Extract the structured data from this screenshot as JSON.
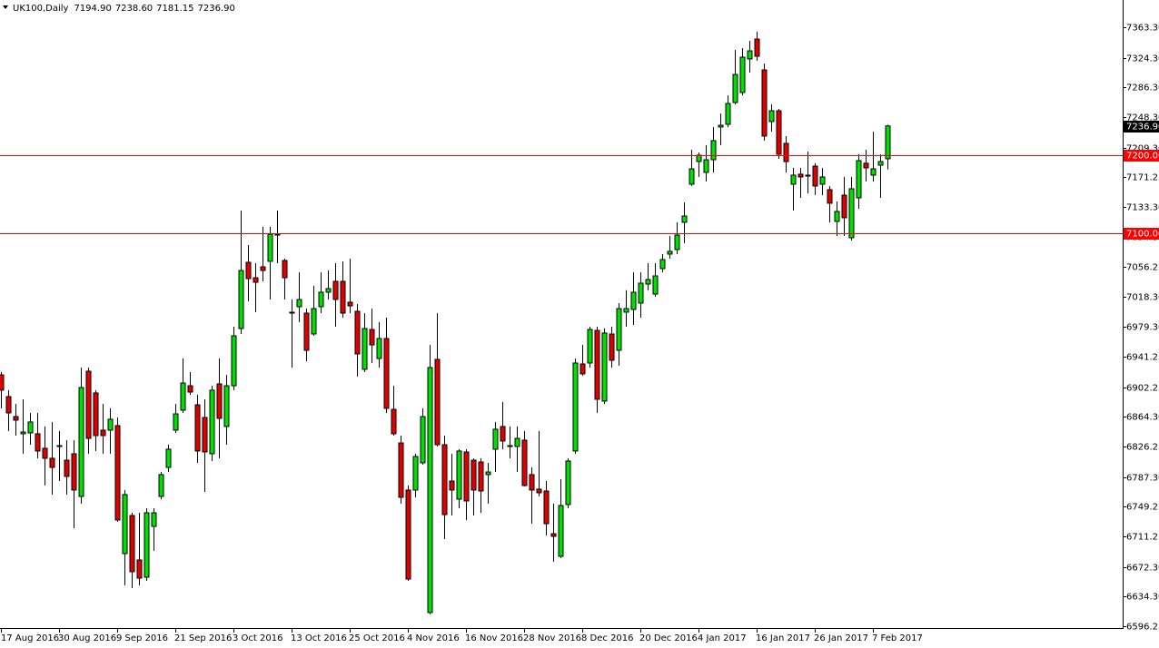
{
  "chart_data": {
    "type": "candlestick",
    "header": {
      "symbol": "UK100,Daily",
      "ohlc": [
        "7194.90",
        "7238.60",
        "7181.15",
        "7236.90"
      ]
    },
    "categories": [
      "17 Aug 2016",
      null,
      null,
      null,
      null,
      null,
      null,
      null,
      "30 Aug 2016",
      null,
      null,
      null,
      null,
      null,
      null,
      null,
      "9 Sep 2016",
      null,
      null,
      null,
      null,
      null,
      null,
      null,
      "21 Sep 2016",
      null,
      null,
      null,
      null,
      null,
      null,
      null,
      "3 Oct 2016",
      null,
      null,
      null,
      null,
      null,
      null,
      null,
      "13 Oct 2016",
      null,
      null,
      null,
      null,
      null,
      null,
      null,
      "25 Oct 2016",
      null,
      null,
      null,
      null,
      null,
      null,
      null,
      "4 Nov 2016",
      null,
      null,
      null,
      null,
      null,
      null,
      null,
      "16 Nov 2016",
      null,
      null,
      null,
      null,
      null,
      null,
      null,
      "28 Nov 2016",
      null,
      null,
      null,
      null,
      null,
      null,
      null,
      "8 Dec 2016",
      null,
      null,
      null,
      null,
      null,
      null,
      null,
      "20 Dec 2016",
      null,
      null,
      null,
      null,
      null,
      null,
      null,
      "4 Jan 2017",
      null,
      null,
      null,
      null,
      null,
      null,
      null,
      "16 Jan 2017",
      null,
      null,
      null,
      null,
      null,
      null,
      null,
      "26 Jan 2017",
      null,
      null,
      null,
      null,
      null,
      null,
      null,
      "7 Feb 2017",
      null,
      null
    ],
    "open": [
      6918.2,
      6890.3,
      6864.7,
      6842.7,
      6843.8,
      6842.7,
      6824.1,
      6811.3,
      6827.5,
      6808.9,
      6817.1,
      6762.4,
      6922.8,
      6895.0,
      6847.3,
      6847.3,
      6853.1,
      6689.2,
      6738.0,
      6681.1,
      6659.0,
      6724.0,
      6762.4,
      6799.6,
      6847.3,
      6872.9,
      6904.2,
      6879.8,
      6863.6,
      6817.1,
      6906.6,
      6852.0,
      6904.2,
      6977.5,
      7062.3,
      7042.5,
      7056.5,
      7063.5,
      7098.3,
      7064.6,
      6997.2,
      7005.4,
      6997.2,
      6970.5,
      7005.4,
      7024.0,
      7037.9,
      7037.9,
      7011.2,
      6999.5,
      6925.2,
      6976.3,
      6939.1,
      6964.7,
      6874.0,
      6831.0,
      6770.6,
      6770.6,
      6805.5,
      6613.7,
      6938.0,
      6828.7,
      6782.2,
      6758.9,
      6819.4,
      6808.9,
      6806.6,
      6790.4,
      6822.9,
      6852.0,
      6827.5,
      6826.4,
      6834.5,
      6790.4,
      6771.8,
      6769.4,
      6714.7,
      6685.7,
      6752.0,
      6820.6,
      6932.1,
      6933.3,
      6975.1,
      6884.5,
      6970.5,
      6949.6,
      6998.4,
      7001.9,
      7010.0,
      7034.4,
      7021.6,
      7054.2,
      7072.8,
      7078.6,
      7113.5,
      7162.3,
      7191.3,
      7177.4,
      7193.6,
      7235.5,
      7239.0,
      7266.9,
      7279.7,
      7322.7,
      7348.2,
      7308.7,
      7242.5,
      7256.4,
      7214.6,
      7162.3,
      7175.1,
      7172.7,
      7185.5,
      7162.3,
      7155.3,
      7114.6,
      7148.3,
      7093.7,
      7144.8,
      7189.2,
      7173.9,
      7186.7,
      7194.9
    ],
    "high": [
      6921.7,
      6898.5,
      6881.0,
      6886.8,
      6869.4,
      6869.4,
      6852.0,
      6857.8,
      6846.1,
      6834.5,
      6834.5,
      6927.5,
      6927.5,
      6898.5,
      6881.0,
      6875.2,
      6863.6,
      6770.6,
      6741.5,
      6741.5,
      6747.3,
      6747.3,
      6793.8,
      6828.7,
      6881.0,
      6939.1,
      6921.7,
      6892.6,
      6886.8,
      6904.2,
      6939.1,
      6918.2,
      6979.8,
      7128.5,
      7084.4,
      7061.1,
      7107.6,
      7107.6,
      7128.5,
      7067.0,
      7014.7,
      7049.5,
      7003.0,
      7032.1,
      7049.5,
      7051.8,
      7061.1,
      7063.5,
      7067.0,
      7008.8,
      6997.2,
      7003.0,
      6985.6,
      6991.4,
      6904.2,
      6840.3,
      6776.4,
      6817.1,
      6875.2,
      6956.5,
      6997.2,
      6840.3,
      6817.1,
      6822.9,
      6822.9,
      6811.3,
      6811.3,
      6805.5,
      6857.8,
      6883.3,
      6852.0,
      6852.0,
      6846.1,
      6799.6,
      6846.1,
      6782.2,
      6753.1,
      6784.5,
      6811.3,
      6939.1,
      6956.5,
      6979.8,
      6979.8,
      6977.5,
      6979.8,
      7010.0,
      7026.5,
      7049.5,
      7049.5,
      7061.1,
      7061.1,
      7072.8,
      7096.0,
      7113.5,
      7139.0,
      7206.4,
      7203.0,
      7212.2,
      7235.5,
      7252.9,
      7276.2,
      7334.3,
      7336.6,
      7345.9,
      7357.5,
      7316.8,
      7264.5,
      7258.7,
      7223.9,
      7183.2,
      7183.2,
      7204.1,
      7189.2,
      7183.2,
      7160.0,
      7140.2,
      7171.6,
      7171.6,
      7200.6,
      7206.4,
      7229.7,
      7200.6,
      7238.6
    ],
    "low": [
      6875.2,
      6846.1,
      6840.3,
      6817.1,
      6828.7,
      6811.3,
      6776.4,
      6764.8,
      6782.2,
      6764.8,
      6721.7,
      6753.1,
      6817.1,
      6820.6,
      6817.1,
      6817.1,
      6729.9,
      6648.6,
      6645.1,
      6648.6,
      6654.3,
      6692.7,
      6758.9,
      6793.8,
      6843.8,
      6869.4,
      6892.6,
      6805.5,
      6768.2,
      6807.8,
      6811.3,
      6828.7,
      6898.5,
      6970.5,
      7012.3,
      6998.4,
      7037.9,
      7014.7,
      7061.1,
      7014.7,
      6927.5,
      6985.6,
      6935.6,
      6968.2,
      6997.2,
      7014.7,
      6979.8,
      6991.4,
      6997.2,
      6915.9,
      6921.7,
      6933.3,
      6927.5,
      6869.4,
      6840.3,
      6753.1,
      6654.3,
      6761.3,
      6803.1,
      6611.4,
      6826.4,
      6707.8,
      6738.0,
      6747.3,
      6732.2,
      6738.0,
      6741.5,
      6753.1,
      6793.8,
      6822.9,
      6811.3,
      6793.8,
      6775.2,
      6727.5,
      6762.4,
      6712.5,
      6678.8,
      6683.4,
      6747.3,
      6817.1,
      6917.0,
      6927.5,
      6869.4,
      6881.0,
      6927.5,
      6929.8,
      6979.8,
      6982.1,
      6991.4,
      7026.5,
      7018.1,
      7049.5,
      7067.0,
      7072.8,
      7086.7,
      7160.0,
      7171.6,
      7165.8,
      7177.4,
      7212.2,
      7235.5,
      7264.5,
      7276.2,
      7305.2,
      7320.3,
      7218.1,
      7229.7,
      7194.8,
      7177.4,
      7128.5,
      7144.8,
      7150.6,
      7148.3,
      7148.3,
      7113.5,
      7096.0,
      7096.0,
      7090.2,
      7130.9,
      7165.8,
      7165.8,
      7144.8,
      7181.15
    ],
    "close": [
      6898.5,
      6869.4,
      6860.1,
      6845.0,
      6857.8,
      6820.6,
      6811.3,
      6799.6,
      6826.4,
      6788.0,
      6770.6,
      6901.9,
      6836.8,
      6840.3,
      6840.3,
      6861.3,
      6732.2,
      6764.8,
      6666.0,
      6657.8,
      6741.5,
      6741.5,
      6790.4,
      6822.9,
      6868.2,
      6907.7,
      6896.1,
      6820.6,
      6819.4,
      6898.5,
      6862.4,
      6904.2,
      6968.2,
      7051.8,
      7041.4,
      7036.7,
      7051.8,
      7098.3,
      7097.2,
      7042.5,
      6998.4,
      7014.7,
      6949.6,
      7003.0,
      7024.0,
      7028.6,
      7014.7,
      6997.2,
      7006.5,
      6944.9,
      6977.5,
      6956.5,
      6964.7,
      6875.2,
      6842.7,
      6761.3,
      6656.6,
      6813.6,
      6864.7,
      6927.5,
      6828.7,
      6739.2,
      6770.6,
      6820.6,
      6756.6,
      6770.6,
      6769.4,
      6793.8,
      6848.5,
      6833.4,
      6826.4,
      6836.8,
      6776.4,
      6770.6,
      6767.1,
      6727.5,
      6711.3,
      6750.8,
      6807.8,
      6933.3,
      6919.4,
      6976.3,
      6886.8,
      6971.7,
      6936.8,
      7003.0,
      7003.0,
      7024.0,
      7035.6,
      7040.2,
      7044.9,
      7065.8,
      7076.3,
      7097.2,
      7121.6,
      7182.0,
      7199.5,
      7193.6,
      7218.1,
      7237.8,
      7265.7,
      7302.9,
      7325.0,
      7333.1,
      7326.1,
      7223.9,
      7256.4,
      7200.6,
      7191.3,
      7173.9,
      7171.6,
      7173.9,
      7160.0,
      7171.6,
      7137.9,
      7127.4,
      7119.3,
      7156.5,
      7192.5,
      7183.2,
      7182.0,
      7191.3,
      7236.9
    ],
    "up_color": "#00e000",
    "down_color": "#e00000",
    "ylim": [
      6593.9,
      7398.2
    ],
    "yticks": [
      {
        "value": 7363.3,
        "label": "7363.30"
      },
      {
        "value": 7324.3,
        "label": "7324.30"
      },
      {
        "value": 7286.3,
        "label": "7286.30"
      },
      {
        "value": 7248.3,
        "label": "7248.30"
      },
      {
        "value": 7209.3,
        "label": "7209.30"
      },
      {
        "value": 7171.25,
        "label": "7171.25"
      },
      {
        "value": 7133.3,
        "label": "7133.30"
      },
      {
        "value": 7094.3,
        "label": "7094.30"
      },
      {
        "value": 7056.25,
        "label": "7056.25"
      },
      {
        "value": 7018.3,
        "label": "7018.30"
      },
      {
        "value": 6979.3,
        "label": "6979.30"
      },
      {
        "value": 6941.25,
        "label": "6941.25"
      },
      {
        "value": 6902.25,
        "label": "6902.25"
      },
      {
        "value": 6864.3,
        "label": "6864.30"
      },
      {
        "value": 6826.25,
        "label": "6826.25"
      },
      {
        "value": 6787.3,
        "label": "6787.30"
      },
      {
        "value": 6749.25,
        "label": "6749.25"
      },
      {
        "value": 6711.25,
        "label": "6711.25"
      },
      {
        "value": 6672.3,
        "label": "6672.30"
      },
      {
        "value": 6634.3,
        "label": "6634.30"
      },
      {
        "value": 6596.25,
        "label": "6596.25"
      }
    ],
    "hlines": [
      {
        "value": 7200,
        "label": "7200.00",
        "color": "#ff0000"
      },
      {
        "value": 7100,
        "label": "7100.00",
        "color": "#ff0000"
      }
    ],
    "last_price": {
      "value": 7236.9,
      "label": "7236.90"
    }
  }
}
